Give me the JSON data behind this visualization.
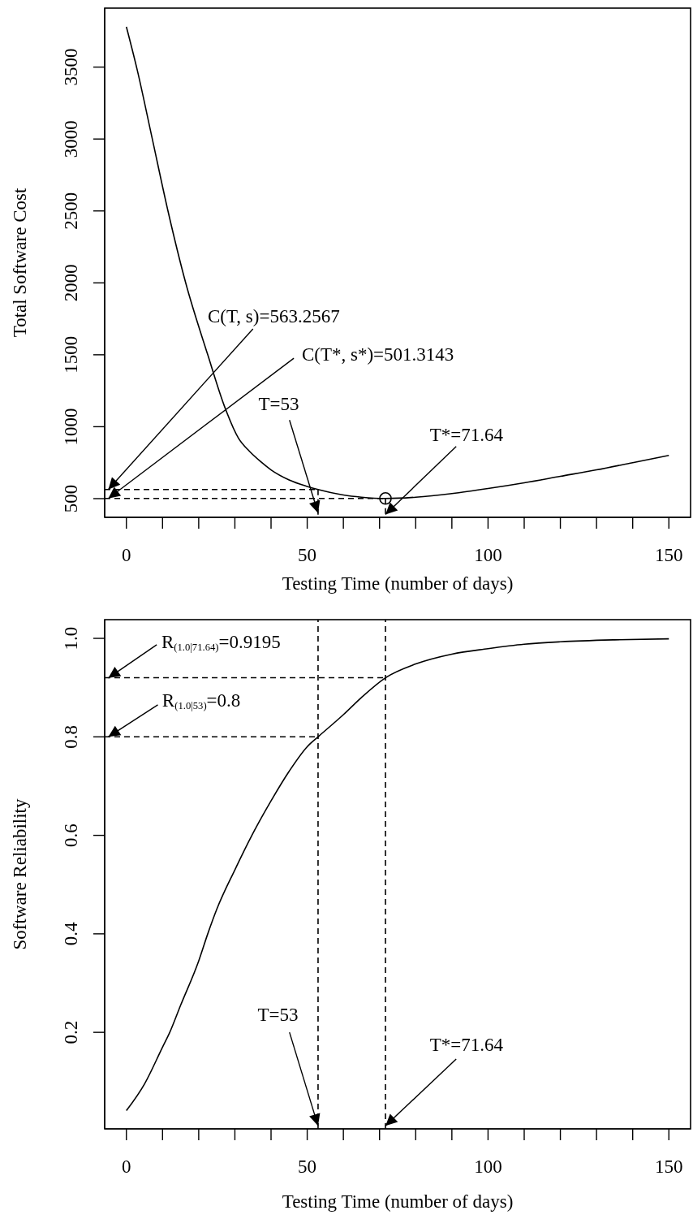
{
  "chart_data": [
    {
      "type": "line",
      "xlabel": "Testing Time (number of days)",
      "ylabel": "Total Software Cost",
      "xlim": [
        -6,
        156
      ],
      "ylim": [
        370,
        3910
      ],
      "xticks": [
        0,
        {
          "value": 10,
          "label": null
        },
        {
          "value": 20,
          "label": null
        },
        {
          "value": 30,
          "label": null
        },
        {
          "value": 40,
          "label": null
        },
        50,
        {
          "value": 60,
          "label": null
        },
        {
          "value": 70,
          "label": null
        },
        {
          "value": 80,
          "label": null
        },
        {
          "value": 90,
          "label": null
        },
        100,
        {
          "value": 110,
          "label": null
        },
        {
          "value": 120,
          "label": null
        },
        {
          "value": 130,
          "label": null
        },
        {
          "value": 140,
          "label": null
        },
        150
      ],
      "yticks": [
        500,
        1000,
        1500,
        2000,
        2500,
        3000,
        3500
      ],
      "series": [
        {
          "color": "#000000",
          "x": [
            0,
            3,
            7,
            11.5,
            16.4,
            22.5,
            27,
            31,
            34,
            37,
            40,
            45,
            50,
            53,
            60,
            65,
            71.64,
            80,
            90,
            100,
            110,
            120,
            130,
            140,
            150
          ],
          "values": [
            3780,
            3480,
            3020,
            2500,
            2000,
            1500,
            1150,
            920,
            830,
            760,
            700,
            630,
            585,
            563,
            525,
            510,
            501,
            510,
            535,
            570,
            610,
            655,
            700,
            750,
            800
          ]
        },
        {
          "type": "scatter",
          "marker": "circle",
          "color": "#000000",
          "x": [
            71.64
          ],
          "values": [
            501
          ]
        },
        {
          "line_style": "dashed",
          "color": "#000000",
          "x": [
            -6,
            53
          ],
          "values": [
            563,
            563
          ]
        },
        {
          "line_style": "dashed",
          "color": "#000000",
          "x": [
            -6,
            71.64
          ],
          "values": [
            501,
            501
          ]
        },
        {
          "line_style": "dashed",
          "color": "#000000",
          "x": [
            53,
            53
          ],
          "values": [
            563,
            370
          ]
        },
        {
          "line_style": "dashed",
          "color": "#000000",
          "x": [
            71.64,
            71.64
          ],
          "values": [
            501,
            370
          ]
        }
      ],
      "annotations": [
        {
          "text": "C(T, s)=563.2567",
          "x": -5,
          "y": 563.2567
        },
        {
          "text": "C(T*, s*)=501.3143",
          "x": -5,
          "y": 501.3143
        },
        {
          "text": "T=53",
          "x": 53,
          "y": 400
        },
        {
          "text": "T*=71.64",
          "x": 71.64,
          "y": 390
        }
      ]
    },
    {
      "type": "line",
      "xlabel": "Testing Time (number of days)",
      "ylabel": "Software Reliability",
      "xlim": [
        -6,
        156
      ],
      "ylim": [
        0.004,
        1.038
      ],
      "xticks": [
        0,
        {
          "value": 10,
          "label": null
        },
        {
          "value": 20,
          "label": null
        },
        {
          "value": 30,
          "label": null
        },
        {
          "value": 40,
          "label": null
        },
        50,
        {
          "value": 60,
          "label": null
        },
        {
          "value": 70,
          "label": null
        },
        {
          "value": 80,
          "label": null
        },
        {
          "value": 90,
          "label": null
        },
        100,
        {
          "value": 110,
          "label": null
        },
        {
          "value": 120,
          "label": null
        },
        {
          "value": 130,
          "label": null
        },
        {
          "value": 140,
          "label": null
        },
        150
      ],
      "yticks": [
        0.2,
        0.4,
        0.6,
        0.8,
        {
          "value": 1,
          "label": "1.0"
        }
      ],
      "series": [
        {
          "color": "#000000",
          "x": [
            0,
            5,
            10,
            12,
            15,
            20,
            22.5,
            25,
            30,
            34.7,
            40,
            45,
            50,
            53,
            60,
            65,
            71.64,
            80,
            90,
            100,
            110,
            120,
            135,
            150
          ],
          "values": [
            0.041,
            0.095,
            0.17,
            0.2,
            0.255,
            0.345,
            0.4,
            0.45,
            0.53,
            0.6,
            0.67,
            0.73,
            0.78,
            0.8,
            0.845,
            0.88,
            0.92,
            0.948,
            0.968,
            0.979,
            0.988,
            0.993,
            0.997,
            0.999
          ]
        },
        {
          "line_style": "dashed",
          "color": "#000000",
          "x": [
            -6,
            53
          ],
          "values": [
            0.8,
            0.8
          ]
        },
        {
          "line_style": "dashed",
          "color": "#000000",
          "x": [
            -6,
            71.64
          ],
          "values": [
            0.92,
            0.92
          ]
        }
      ],
      "ref_lines": [
        {
          "axis": "x",
          "value": 53,
          "line_style": "dashed",
          "color": "#000000"
        },
        {
          "axis": "x",
          "value": 71.64,
          "line_style": "dashed",
          "color": "#000000"
        }
      ],
      "annotations": [
        {
          "text": "R$_{(1.0|71.64)}$=0.9195",
          "x": -5,
          "y": 0.9195
        },
        {
          "text": "R$_{(1.0|53)}$=0.8",
          "x": -5,
          "y": 0.8
        },
        {
          "text": "T=53",
          "x": 53,
          "y": 0.01
        },
        {
          "text": "T*=71.64",
          "x": 71.64,
          "y": 0.01
        }
      ]
    }
  ]
}
